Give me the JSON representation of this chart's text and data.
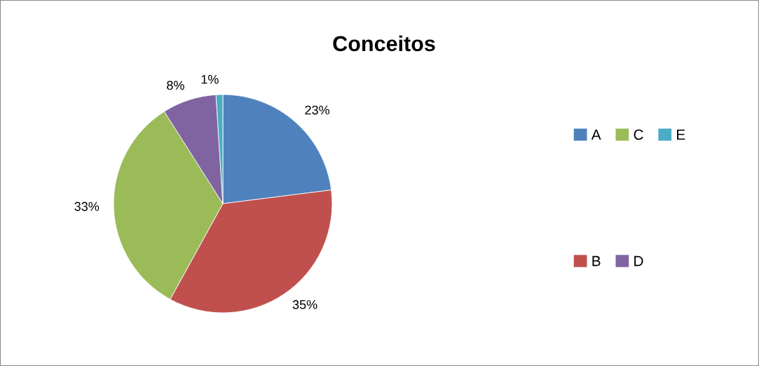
{
  "chart_data": {
    "type": "pie",
    "title": "Conceitos",
    "categories": [
      "A",
      "B",
      "C",
      "D",
      "E"
    ],
    "values": [
      23,
      35,
      33,
      8,
      1
    ],
    "value_labels": [
      "23%",
      "35%",
      "33%",
      "8%",
      "1%"
    ],
    "colors": [
      "#4f81bd",
      "#c0504d",
      "#9bbb59",
      "#8064a2",
      "#4bacc6"
    ],
    "legend": "right"
  }
}
